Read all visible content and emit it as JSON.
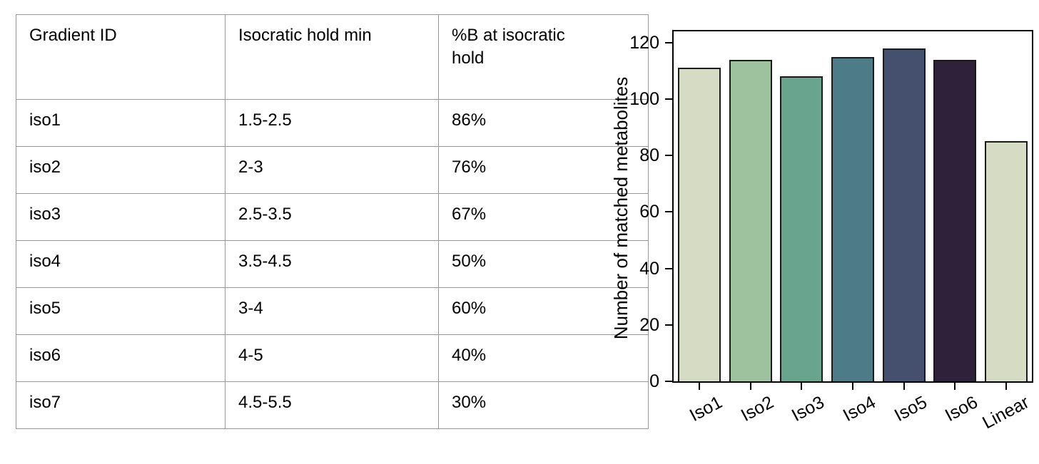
{
  "table": {
    "headers": [
      "Gradient ID",
      "Isocratic hold min",
      "%B at isocratic hold"
    ],
    "rows": [
      [
        "iso1",
        "1.5-2.5",
        "86%"
      ],
      [
        "iso2",
        "2-3",
        "76%"
      ],
      [
        "iso3",
        "2.5-3.5",
        "67%"
      ],
      [
        "iso4",
        "3.5-4.5",
        "50%"
      ],
      [
        "iso5",
        "3-4",
        "60%"
      ],
      [
        "iso6",
        "4-5",
        "40%"
      ],
      [
        "iso7",
        "4.5-5.5",
        "30%"
      ]
    ]
  },
  "chart_data": {
    "type": "bar",
    "title": "",
    "xlabel": "",
    "ylabel": "Number of matched metabolites",
    "categories": [
      "Iso1",
      "Iso2",
      "Iso3",
      "Iso4",
      "Iso5",
      "Iso6",
      "Linear"
    ],
    "values": [
      111,
      114,
      108,
      115,
      118,
      114,
      85
    ],
    "bar_colors": [
      "#d6dcc3",
      "#9ec19e",
      "#68a48e",
      "#4e7b88",
      "#44506e",
      "#2e2139",
      "#d6dcc3"
    ],
    "bar_edge_color": "#1a1a1a",
    "yticks": [
      0,
      20,
      40,
      60,
      80,
      100,
      120
    ],
    "ylim": [
      0,
      124
    ],
    "grid": false,
    "legend": "none",
    "x_tick_rotation_deg": 28
  }
}
